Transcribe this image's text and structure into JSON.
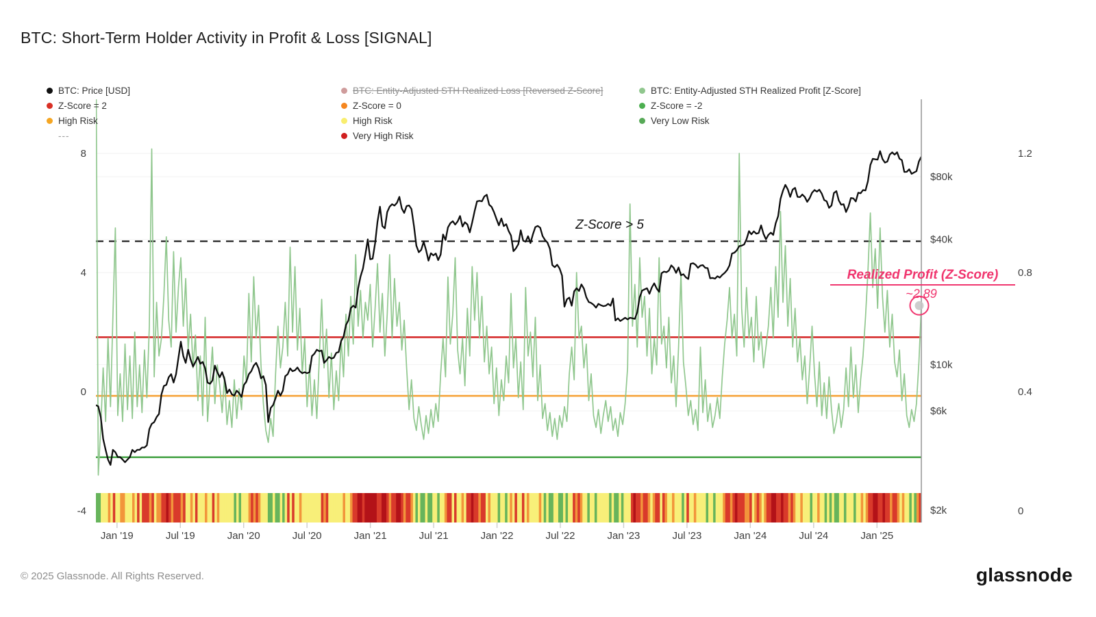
{
  "title": "BTC: Short-Term Holder Activity in Profit & Loss [SIGNAL]",
  "legend": {
    "col1": [
      {
        "label": "BTC: Price [USD]",
        "dot": "#111111"
      },
      {
        "label": "Z-Score = 2",
        "dot": "#d93025"
      },
      {
        "label": "High Risk",
        "dot": "#f5a623"
      },
      {
        "label": "---",
        "dot": null
      }
    ],
    "col2": [
      {
        "label": "BTC: Entity-Adjusted STH Realized Loss [Reversed Z-Score]",
        "dot": "#cf9c9c",
        "struck": true
      },
      {
        "label": "Z-Score = 0",
        "dot": "#f5861f"
      },
      {
        "label": "High Risk",
        "dot": "#f9ee6f"
      },
      {
        "label": "Very High Risk",
        "dot": "#d01f1f"
      }
    ],
    "col3": [
      {
        "label": "BTC: Entity-Adjusted STH Realized Profit [Z-Score]",
        "dot": "#90c78e"
      },
      {
        "label": "Z-Score = -2",
        "dot": "#4caf50"
      },
      {
        "label": "Very Low Risk",
        "dot": "#57a957"
      }
    ]
  },
  "annotations": {
    "threshold_label": "Z-Score > 5",
    "callout_title": "Realized Profit (Z-Score)",
    "callout_value": "~2.89",
    "callout_color": "#f0356e"
  },
  "footer": {
    "copyright": "© 2025 Glassnode. All Rights Reserved.",
    "logo": "glassnode"
  },
  "chart_data": {
    "type": "line",
    "time": {
      "start": "Nov 2018",
      "end": "May 2025",
      "cadence": "weekly",
      "months_span": 78.2
    },
    "x_axis": {
      "tick_labels": [
        "Jan '19",
        "Jul '19",
        "Jan '20",
        "Jul '20",
        "Jan '21",
        "Jul '21",
        "Jan '22",
        "Jul '22",
        "Jan '23",
        "Jul '23",
        "Jan '24",
        "Jul '24",
        "Jan '25"
      ],
      "tick_month_index": [
        2,
        8,
        14,
        20,
        26,
        32,
        38,
        44,
        50,
        56,
        62,
        68,
        74
      ]
    },
    "y_axis_zscore": {
      "ticks": [
        8,
        4,
        0,
        -4
      ],
      "visible_range": [
        -4.4,
        9.8
      ]
    },
    "y_axis_price_usd": {
      "ticks": [
        "$80k",
        "$40k",
        "$10k",
        "$6k",
        "$2k"
      ],
      "tick_values_usd_k": [
        80,
        40,
        10,
        6,
        2
      ],
      "scale": "log"
    },
    "y_axis_secondary": {
      "ticks": [
        1.2,
        0.8,
        0.4,
        0
      ]
    },
    "reference_lines": [
      {
        "label": "Z-Score > 5",
        "style": "dashed",
        "color": "#141414",
        "z": 5.05
      },
      {
        "label": "Z-Score = 2",
        "style": "solid",
        "color": "#d62c2c",
        "z": 1.83
      },
      {
        "label": "Z-Score = 0",
        "style": "solid",
        "color": "#f6a137",
        "z": -0.14
      },
      {
        "label": "Z-Score = -2",
        "style": "solid",
        "color": "#4aa54a",
        "z": -2.2
      }
    ],
    "series": [
      {
        "name": "BTC: Price [USD]",
        "color": "#0d0d0d",
        "axis": "price_usd_k",
        "weekly_values": [
          6.4,
          6.3,
          5.6,
          4.4,
          3.9,
          3.5,
          3.3,
          3.9,
          3.8,
          3.6,
          3.6,
          3.5,
          3.4,
          3.5,
          3.6,
          3.9,
          3.8,
          3.9,
          3.9,
          4.0,
          4.0,
          4.1,
          4.9,
          5.2,
          5.3,
          5.6,
          5.8,
          7.2,
          7.9,
          8.0,
          8.7,
          9.0,
          8.2,
          9.0,
          10.8,
          12.9,
          11.0,
          10.2,
          11.8,
          10.6,
          9.8,
          10.3,
          10.9,
          10.1,
          10.3,
          9.6,
          8.2,
          8.1,
          8.4,
          9.9,
          9.2,
          8.7,
          9.2,
          8.5,
          7.3,
          7.6,
          7.2,
          7.1,
          7.5,
          7.3,
          7.0,
          8.0,
          8.3,
          9.0,
          9.3,
          9.9,
          10.2,
          9.6,
          8.6,
          8.8,
          8.0,
          5.3,
          6.2,
          6.4,
          6.9,
          7.5,
          7.1,
          7.5,
          8.8,
          9.0,
          9.6,
          9.3,
          9.4,
          9.7,
          9.3,
          9.1,
          9.2,
          9.1,
          9.2,
          11.0,
          11.3,
          11.8,
          11.6,
          11.7,
          10.2,
          10.5,
          10.9,
          10.7,
          10.8,
          11.4,
          11.5,
          13.0,
          13.6,
          15.5,
          16.3,
          18.7,
          19.2,
          18.8,
          23.2,
          26.5,
          29.0,
          33.9,
          40.0,
          32.1,
          32.3,
          38.3,
          48.6,
          57.4,
          46.3,
          45.2,
          54.1,
          57.4,
          59.0,
          58.1,
          59.9,
          64.0,
          56.2,
          53.6,
          57.8,
          58.2,
          55.9,
          46.4,
          37.3,
          34.7,
          35.6,
          39.0,
          35.5,
          31.6,
          34.3,
          33.5,
          34.2,
          31.8,
          33.8,
          42.2,
          39.7,
          45.6,
          47.8,
          48.9,
          47.1,
          48.8,
          51.8,
          46.1,
          48.3,
          47.2,
          43.2,
          48.2,
          54.7,
          60.9,
          61.3,
          60.9,
          64.3,
          65.5,
          58.7,
          57.3,
          54.0,
          50.1,
          46.7,
          50.4,
          46.3,
          47.3,
          43.9,
          41.7,
          35.1,
          36.2,
          37.9,
          44.2,
          39.4,
          39.0,
          41.4,
          38.4,
          42.2,
          45.8,
          46.4,
          45.5,
          41.5,
          39.7,
          38.6,
          36.0,
          30.1,
          29.4,
          30.2,
          29.0,
          26.8,
          19.0,
          20.6,
          21.0,
          19.2,
          22.5,
          23.3,
          22.6,
          24.3,
          23.2,
          21.1,
          20.0,
          19.8,
          19.4,
          18.8,
          19.6,
          19.3,
          19.1,
          19.2,
          19.6,
          19.2,
          20.8,
          16.3,
          16.7,
          16.2,
          16.5,
          16.8,
          16.5,
          16.8,
          16.7,
          16.6,
          17.9,
          21.1,
          22.7,
          23.0,
          23.3,
          21.9,
          23.5,
          24.6,
          23.2,
          22.4,
          27.5,
          28.0,
          27.8,
          28.3,
          30.0,
          29.2,
          27.6,
          29.3,
          26.9,
          27.2,
          26.3,
          25.8,
          30.5,
          30.7,
          30.2,
          29.2,
          29.9,
          30.1,
          29.2,
          29.1,
          26.0,
          26.1,
          25.9,
          26.6,
          26.2,
          27.0,
          27.6,
          28.5,
          30.0,
          34.2,
          34.5,
          35.4,
          37.1,
          37.3,
          37.8,
          40.0,
          43.8,
          42.3,
          43.7,
          42.6,
          42.9,
          46.7,
          42.5,
          40.0,
          42.0,
          43.1,
          42.0,
          47.8,
          51.6,
          62.5,
          68.5,
          73.1,
          69.5,
          64.0,
          69.4,
          70.7,
          64.0,
          63.8,
          65.7,
          63.9,
          60.6,
          63.1,
          67.0,
          69.0,
          67.8,
          69.3,
          66.3,
          61.8,
          60.9,
          56.7,
          58.2,
          66.8,
          68.2,
          61.5,
          58.7,
          59.0,
          54.1,
          57.6,
          63.2,
          62.9,
          60.8,
          67.0,
          66.6,
          69.0,
          68.7,
          76.0,
          91.0,
          97.5,
          97.0,
          96.6,
          106.1,
          97.3,
          93.5,
          94.6,
          102.2,
          104.7,
          102.1,
          104.8,
          97.6,
          96.1,
          84.3,
          84.4,
          86.8,
          82.6,
          83.8,
          85.0,
          94.7,
          99.8
        ]
      },
      {
        "name": "BTC: Entity-Adjusted STH Realized Profit [Z-Score]",
        "color": "#90c78e",
        "axis": "zscore",
        "weekly_values": [
          12,
          -2.8,
          -1.2,
          0.8,
          -1.0,
          1.8,
          -0.5,
          2.5,
          5.5,
          -0.8,
          0.6,
          -1.0,
          1.6,
          -0.6,
          1.2,
          -0.9,
          2.0,
          -0.5,
          0.9,
          -0.7,
          1.4,
          -0.2,
          2.2,
          8.15,
          0.5,
          3.0,
          1.2,
          1.8,
          3.2,
          5.2,
          2.4,
          1.5,
          4.7,
          2.0,
          3.5,
          4.5,
          2.2,
          3.8,
          1.4,
          2.6,
          0.8,
          1.9,
          -0.3,
          1.2,
          -0.8,
          2.5,
          -1.0,
          0.3,
          1.5,
          -0.4,
          0.9,
          0.2,
          -0.7,
          0.5,
          -1.1,
          -0.3,
          -1.2,
          0.4,
          -0.9,
          0.1,
          -0.6,
          1.2,
          0.3,
          3.3,
          1.0,
          3.86,
          1.8,
          2.9,
          0.9,
          -0.4,
          -1.3,
          -1.7,
          -0.9,
          -1.5,
          0.6,
          2.2,
          0.8,
          1.5,
          3.0,
          1.2,
          4.85,
          2.0,
          4.2,
          1.4,
          2.8,
          0.6,
          1.8,
          -0.5,
          0.9,
          -0.8,
          0.4,
          -0.9,
          1.1,
          3.1,
          0.8,
          2.1,
          -0.2,
          1.3,
          -0.6,
          0.7,
          -0.3,
          1.8,
          0.5,
          2.6,
          1.2,
          3.2,
          1.6,
          4.6,
          2.2,
          3.4,
          1.8,
          3.0,
          2.4,
          3.6,
          1.5,
          2.8,
          4.3,
          2.0,
          3.3,
          1.2,
          2.6,
          4.6,
          1.8,
          3.8,
          2.2,
          3.0,
          1.4,
          2.4,
          0.8,
          -0.6,
          0.4,
          -0.9,
          -1.3,
          -0.5,
          -1.1,
          -1.6,
          -0.8,
          -1.4,
          -0.6,
          -1.2,
          -0.4,
          -1.0,
          0.6,
          1.8,
          0.5,
          3.85,
          1.6,
          2.6,
          4.5,
          1.4,
          0.6,
          1.8,
          0.2,
          2.8,
          1.2,
          4.2,
          2.4,
          4.0,
          1.8,
          3.2,
          1.0,
          2.2,
          0.6,
          1.5,
          -0.4,
          0.8,
          -0.8,
          0.4,
          -0.3,
          1.2,
          0.3,
          3.3,
          0.8,
          1.8,
          -0.2,
          1.0,
          -0.6,
          3.5,
          1.2,
          2.0,
          0.5,
          2.5,
          -0.3,
          0.9,
          -0.9,
          -0.4,
          -1.3,
          -0.7,
          -1.5,
          -0.9,
          -1.6,
          -0.8,
          -1.2,
          -0.5,
          -1.0,
          0.6,
          1.5,
          0.4,
          4.0,
          1.8,
          2.2,
          0.8,
          1.6,
          -0.3,
          0.6,
          -0.8,
          -1.2,
          -0.6,
          -1.4,
          -0.8,
          -0.3,
          -1.0,
          -0.5,
          -1.3,
          -0.9,
          -1.5,
          -0.7,
          -1.1,
          -0.4,
          0.8,
          6.3,
          2.2,
          3.6,
          1.5,
          4.5,
          2.5,
          3.2,
          1.2,
          2.8,
          0.6,
          1.8,
          0.9,
          4.5,
          1.6,
          2.2,
          0.8,
          2.5,
          0.3,
          1.2,
          -0.5,
          1.5,
          4.0,
          1.0,
          0.2,
          -0.8,
          -0.3,
          -1.1,
          -0.6,
          -1.3,
          1.5,
          -0.7,
          0.4,
          -1.0,
          -0.4,
          -1.2,
          -0.8,
          -0.2,
          -0.9,
          0.5,
          1.6,
          2.4,
          3.5,
          1.8,
          2.6,
          1.2,
          8.0,
          2.8,
          1.5,
          3.5,
          1.8,
          2.5,
          1.0,
          3.2,
          1.4,
          2.0,
          0.8,
          1.5,
          2.2,
          3.5,
          1.8,
          4.2,
          2.5,
          6.05,
          3.0,
          4.9,
          2.2,
          3.8,
          1.5,
          2.8,
          1.0,
          1.8,
          0.4,
          1.2,
          -0.4,
          0.8,
          2.2,
          0.6,
          -0.5,
          1.0,
          -0.8,
          0.3,
          -0.9,
          0.5,
          -0.6,
          -1.4,
          -1.0,
          -0.4,
          -1.2,
          -0.6,
          0.8,
          -0.5,
          1.5,
          -0.2,
          0.9,
          -0.7,
          0.4,
          1.2,
          2.5,
          4.0,
          6.0,
          3.5,
          4.8,
          2.8,
          5.5,
          3.2,
          2.0,
          3.4,
          1.5,
          2.6,
          1.0,
          0.5,
          1.4,
          -0.3,
          0.6,
          -0.8,
          -1.2,
          -0.6,
          -1.0,
          -0.4,
          1.0,
          2.89
        ]
      }
    ],
    "highlight_point": {
      "series": "BTC: Entity-Adjusted STH Realized Profit [Z-Score]",
      "z": 2.89,
      "label": "~2.89",
      "ring_color": "#f0356e"
    },
    "risk_heatmap": {
      "colors": {
        "y": "#f8ef79",
        "g": "#67b45b",
        "o": "#f2953b",
        "r": "#d93a2b",
        "d": "#b31218"
      },
      "meaning": {
        "y": "High Risk",
        "g": "Very Low Risk",
        "o": "High Risk",
        "r": "Very High Risk",
        "d": "Very High Risk"
      },
      "runs": [
        "g2",
        "y3",
        "o1",
        "y1",
        "r1",
        "y2",
        "o2",
        "y3",
        "o1",
        "y1",
        "r1",
        "y1",
        "r2",
        "r1",
        "o1",
        "r1",
        "y1",
        "o1",
        "o1",
        "r2",
        "d1",
        "r1",
        "o1",
        "r3",
        "o1",
        "r1",
        "y2",
        "o1",
        "y1",
        "r1",
        "y3",
        "o1",
        "y2",
        "r1",
        "y1",
        "o1",
        "y4",
        "y2",
        "g1",
        "y1",
        "g1",
        "y3",
        "o1",
        "r1",
        "o1",
        "r1",
        "o1",
        "y1",
        "y2",
        "g2",
        "y1",
        "g2",
        "y1",
        "g1",
        "y1",
        "r1",
        "y1",
        "r1",
        "y2",
        "o1",
        "y1",
        "y7",
        "r1",
        "o1",
        "r1",
        "y2",
        "y4",
        "o1",
        "y2",
        "o1",
        "r2",
        "d2",
        "r1",
        "d2",
        "d3",
        "r2",
        "d2",
        "r1",
        "o1",
        "r2",
        "d2",
        "r1",
        "o1",
        "r2",
        "o1",
        "y1",
        "g1",
        "y1",
        "g2",
        "y1",
        "g2",
        "y2",
        "g1",
        "y2",
        "o1",
        "r2",
        "y1",
        "r1",
        "y2",
        "o1",
        "y1",
        "r2",
        "d1",
        "r2",
        "o1",
        "r2",
        "y1",
        "o1",
        "y3",
        "g1",
        "y2",
        "g1",
        "y1",
        "o1",
        "y1",
        "r1",
        "y2",
        "r1",
        "y1",
        "o1",
        "y2",
        "y2",
        "o1",
        "y1",
        "g1",
        "y1",
        "g2",
        "y2",
        "g2",
        "y1",
        "g1",
        "y2",
        "r1",
        "o1",
        "r1",
        "o1",
        "y2",
        "g1",
        "y2",
        "g1",
        "y3",
        "y2",
        "g1",
        "y1",
        "g2",
        "y1",
        "g1",
        "y2",
        "y1",
        "r1",
        "d1",
        "r2",
        "o1",
        "r2",
        "o1",
        "y1",
        "o1",
        "r2",
        "y1",
        "r1",
        "o1",
        "y2",
        "o1",
        "y3",
        "g1",
        "y1",
        "r1",
        "y2",
        "o1",
        "y4",
        "g1",
        "y2",
        "g1",
        "y3",
        "o1",
        "r2",
        "o1",
        "r1",
        "d1",
        "r1",
        "r2",
        "o2",
        "r1",
        "y1",
        "o1",
        "r1",
        "o1",
        "y1",
        "o1",
        "r2",
        "d2",
        "r2",
        "d1",
        "r2",
        "o1",
        "r1",
        "o1",
        "y2",
        "o1",
        "y3",
        "g1",
        "y2",
        "o1",
        "y2",
        "g1",
        "y1",
        "g1",
        "y1",
        "g2",
        "y2",
        "g1",
        "y3",
        "g1",
        "y2",
        "o1",
        "y1",
        "o1",
        "r2",
        "d2",
        "r2",
        "d1",
        "r1",
        "r1",
        "o1",
        "r2",
        "o1",
        "y1",
        "o1",
        "y1",
        "y1",
        "g1",
        "y1",
        "g1",
        "o1",
        "r1"
      ]
    }
  }
}
